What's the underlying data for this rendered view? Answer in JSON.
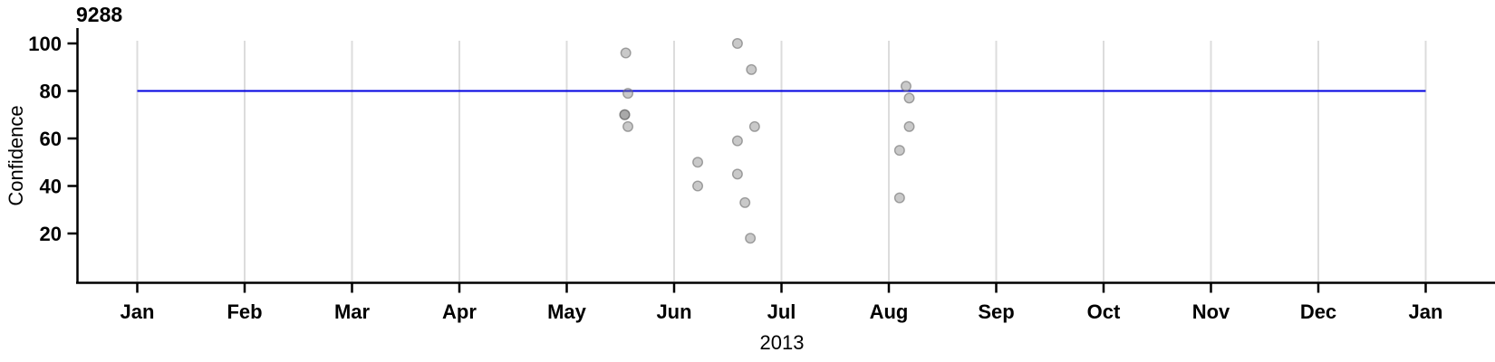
{
  "chart_data": {
    "type": "scatter",
    "title": "9288",
    "xlabel": "2013",
    "ylabel": "Confidence",
    "x_tick_labels": [
      "Jan",
      "Feb",
      "Mar",
      "Apr",
      "May",
      "Jun",
      "Jul",
      "Aug",
      "Sep",
      "Oct",
      "Nov",
      "Dec",
      "Jan"
    ],
    "y_ticks": [
      20,
      40,
      60,
      80,
      100
    ],
    "ylim": [
      0,
      105
    ],
    "grid": "vertical-month-gridlines",
    "legend_position": "none",
    "reference_line": {
      "y": 80,
      "color": "#0000E0"
    },
    "colors": {
      "point_fill": "#7f7f7f",
      "point_stroke": "#6b6b6b",
      "gridline": "#dcdcdc",
      "axis": "#000000"
    },
    "points": [
      {
        "date": "May 18",
        "month_frac": 4.55,
        "value": 96
      },
      {
        "date": "May 18",
        "month_frac": 4.57,
        "value": 79
      },
      {
        "date": "May 17",
        "month_frac": 4.54,
        "value": 70
      },
      {
        "date": "May 17",
        "month_frac": 4.54,
        "value": 70
      },
      {
        "date": "May 18",
        "month_frac": 4.57,
        "value": 65
      },
      {
        "date": "Jun 7",
        "month_frac": 5.22,
        "value": 50
      },
      {
        "date": "Jun 7",
        "month_frac": 5.22,
        "value": 40
      },
      {
        "date": "Jun 18",
        "month_frac": 5.59,
        "value": 100
      },
      {
        "date": "Jun 18",
        "month_frac": 5.59,
        "value": 59
      },
      {
        "date": "Jun 18",
        "month_frac": 5.59,
        "value": 45
      },
      {
        "date": "Jun 22",
        "month_frac": 5.72,
        "value": 89
      },
      {
        "date": "Jun 23",
        "month_frac": 5.75,
        "value": 65
      },
      {
        "date": "Jun 20",
        "month_frac": 5.66,
        "value": 33
      },
      {
        "date": "Jun 22",
        "month_frac": 5.71,
        "value": 18
      },
      {
        "date": "Aug 6",
        "month_frac": 7.16,
        "value": 82
      },
      {
        "date": "Aug 7",
        "month_frac": 7.19,
        "value": 77
      },
      {
        "date": "Aug 7",
        "month_frac": 7.19,
        "value": 65
      },
      {
        "date": "Aug 4",
        "month_frac": 7.1,
        "value": 55
      },
      {
        "date": "Aug 4",
        "month_frac": 7.1,
        "value": 35
      }
    ]
  }
}
